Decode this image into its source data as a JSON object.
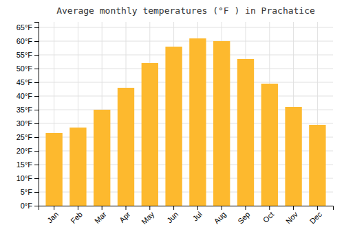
{
  "chart_data": {
    "type": "bar",
    "title": "Average monthly temperatures (°F ) in Prachatice",
    "categories": [
      "Jan",
      "Feb",
      "Mar",
      "Apr",
      "May",
      "Jun",
      "Jul",
      "Aug",
      "Sep",
      "Oct",
      "Nov",
      "Dec"
    ],
    "values": [
      26.5,
      28.5,
      35.0,
      43.0,
      52.0,
      58.0,
      61.0,
      60.0,
      53.5,
      44.5,
      36.0,
      29.5
    ],
    "color": "#FDB92E",
    "ylim": [
      0,
      67
    ],
    "yticks": [
      {
        "value": 0,
        "label": "0°F"
      },
      {
        "value": 5,
        "label": "5°F"
      },
      {
        "value": 10,
        "label": "10°F"
      },
      {
        "value": 15,
        "label": "15°F"
      },
      {
        "value": 20,
        "label": "20°F"
      },
      {
        "value": 25,
        "label": "25°F"
      },
      {
        "value": 30,
        "label": "30°F"
      },
      {
        "value": 35,
        "label": "35°F"
      },
      {
        "value": 40,
        "label": "40°F"
      },
      {
        "value": 45,
        "label": "45°F"
      },
      {
        "value": 50,
        "label": "50°F"
      },
      {
        "value": 55,
        "label": "55°F"
      },
      {
        "value": 60,
        "label": "60°F"
      },
      {
        "value": 65,
        "label": "65°F"
      }
    ],
    "grid": true
  }
}
